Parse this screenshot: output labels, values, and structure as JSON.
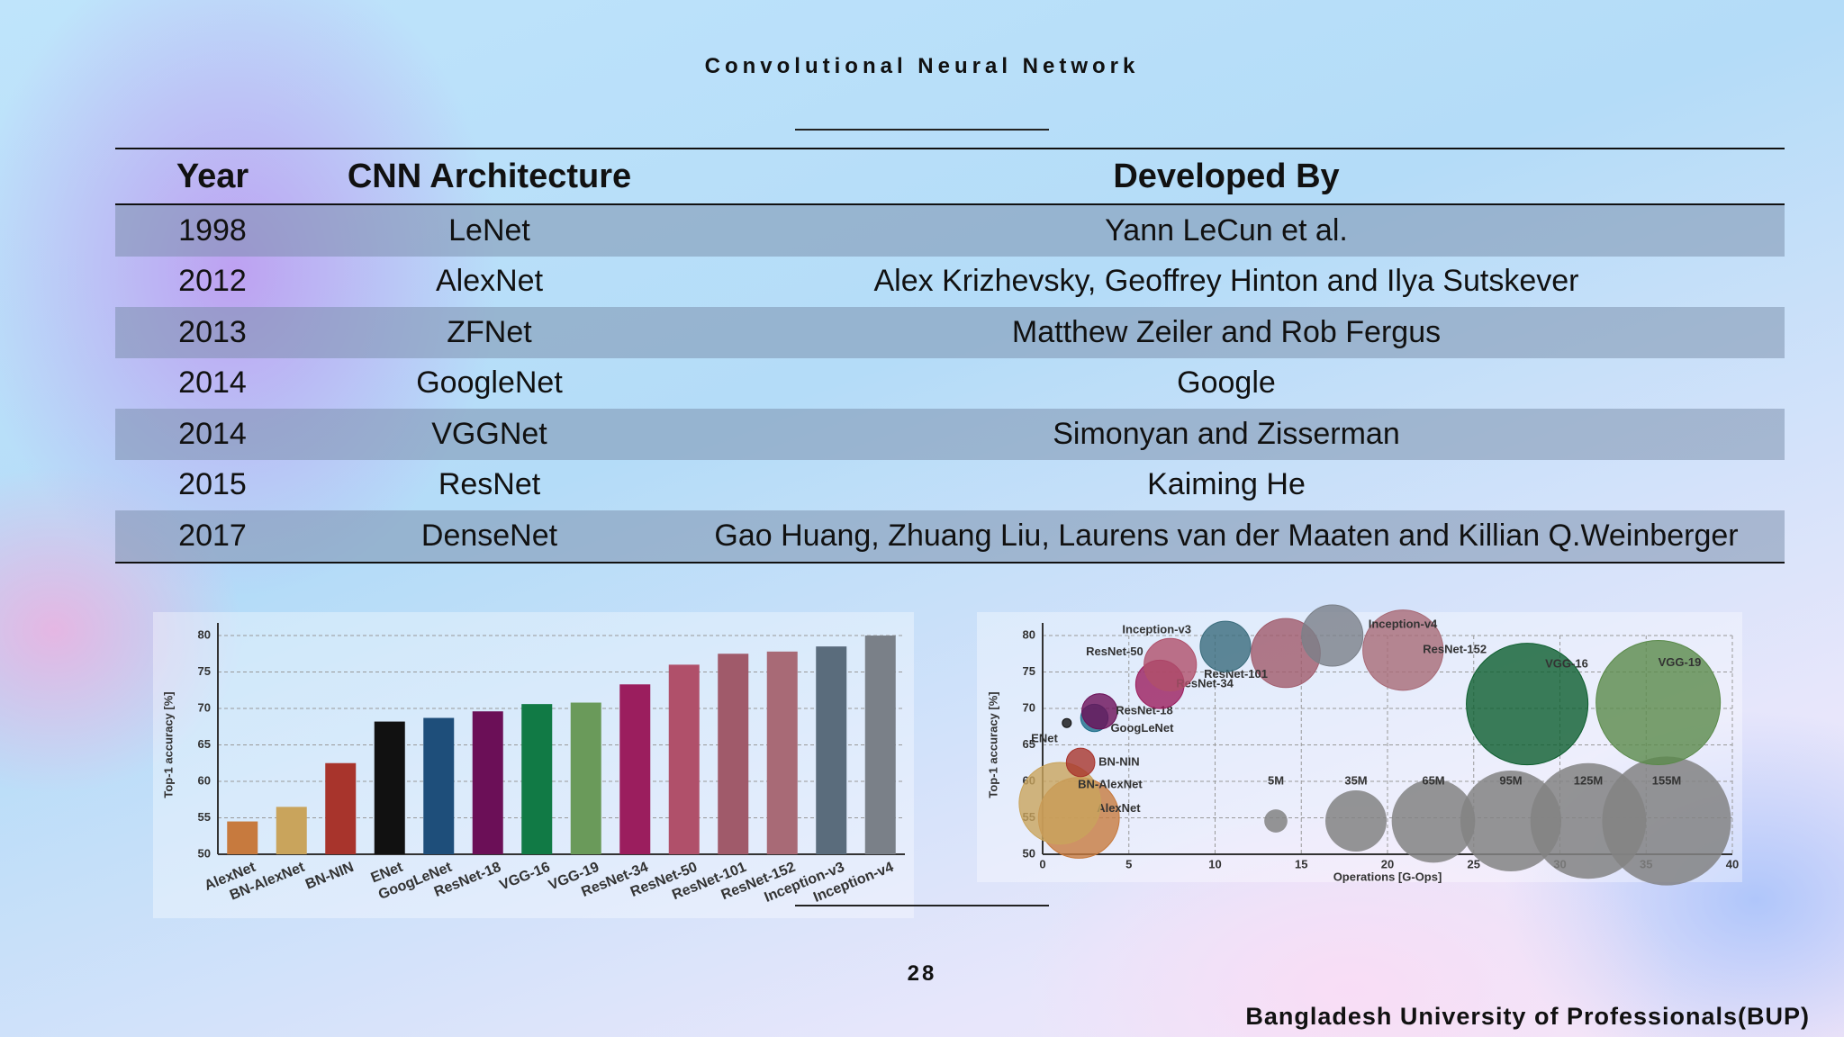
{
  "title": "Convolutional Neural Network",
  "table": {
    "header": [
      "Year",
      "CNN Architecture",
      "Developed By"
    ],
    "rows": [
      [
        "1998",
        "LeNet",
        "Yann LeCun et al."
      ],
      [
        "2012",
        "AlexNet",
        "Alex Krizhevsky, Geoffrey Hinton and Ilya Sutskever"
      ],
      [
        "2013",
        "ZFNet",
        "Matthew Zeiler and Rob Fergus"
      ],
      [
        "2014",
        "GoogleNet",
        "Google"
      ],
      [
        "2014",
        "VGGNet",
        "Simonyan and Zisserman"
      ],
      [
        "2015",
        "ResNet",
        "Kaiming He"
      ],
      [
        "2017",
        "DenseNet",
        "Gao Huang, Zhuang Liu, Laurens van der Maaten and Killian Q.Weinberger"
      ]
    ]
  },
  "chart_data": [
    {
      "type": "bar",
      "y_label": "Top-1 accuracy [%]",
      "categories": [
        "AlexNet",
        "BN-AlexNet",
        "BN-NIN",
        "ENet",
        "GoogLeNet",
        "ResNet-18",
        "VGG-16",
        "VGG-19",
        "ResNet-34",
        "ResNet-50",
        "ResNet-101",
        "ResNet-152",
        "Inception-v3",
        "Inception-v4"
      ],
      "values": [
        54.5,
        56.5,
        62.5,
        68.2,
        68.7,
        69.6,
        70.6,
        70.8,
        73.3,
        76,
        77.5,
        77.8,
        78.5,
        80
      ],
      "colors": [
        "#c77a3e",
        "#c9a45c",
        "#a8342c",
        "#111111",
        "#1e4e7a",
        "#6b0f57",
        "#117a45",
        "#6a9a5a",
        "#9b1e5e",
        "#b0506a",
        "#a05a6a",
        "#a86a76",
        "#5a6c7c",
        "#7a8088"
      ],
      "ylim": [
        50,
        80
      ],
      "yticks": [
        50,
        55,
        60,
        65,
        70,
        75,
        80
      ],
      "grid": true
    },
    {
      "type": "bubble",
      "x_label": "Operations [G-Ops]",
      "y_label": "Top-1 accuracy [%]",
      "labels": [
        "AlexNet",
        "BN-AlexNet",
        "BN-NIN",
        "ENet",
        "GoogLeNet",
        "ResNet-18",
        "ResNet-34",
        "ResNet-50",
        "ResNet-101",
        "ResNet-152",
        "Inception-v3",
        "Inception-v4",
        "VGG-16",
        "VGG-19"
      ],
      "x": [
        2.1,
        1,
        2.2,
        1.4,
        3,
        3.3,
        6.8,
        7.4,
        14.1,
        20.9,
        10.6,
        16.8,
        28.1,
        35.7
      ],
      "values": [
        55,
        57,
        62.6,
        68,
        68.7,
        69.6,
        73.3,
        76,
        77.6,
        78,
        78.5,
        80,
        70.6,
        70.8
      ],
      "sizes": [
        61,
        62,
        7.6,
        0.4,
        7,
        11.7,
        21.8,
        25.6,
        44.5,
        60.2,
        23.8,
        35,
        138,
        144
      ],
      "colors": [
        "#c77a3e",
        "#c9a45c",
        "#a8342c",
        "#111111",
        "#1e6e8a",
        "#6b0f57",
        "#9b1e5e",
        "#b0506a",
        "#a05a6a",
        "#a86a76",
        "#3a6c7c",
        "#7a8088",
        "#0d5e2e",
        "#5a8a4a"
      ],
      "size_legend": [
        {
          "value": 5,
          "label": "5M"
        },
        {
          "value": 35,
          "label": "35M"
        },
        {
          "value": 65,
          "label": "65M"
        },
        {
          "value": 95,
          "label": "95M"
        },
        {
          "value": 125,
          "label": "125M"
        },
        {
          "value": 155,
          "label": "155M"
        }
      ],
      "xlim": [
        0,
        40
      ],
      "xticks": [
        0,
        5,
        10,
        15,
        20,
        25,
        30,
        35,
        40
      ],
      "ylim": [
        50,
        80
      ],
      "yticks": [
        50,
        55,
        60,
        65,
        70,
        75,
        80
      ],
      "grid": true
    }
  ],
  "page_number": "28",
  "footer": "Bangladesh University of Professionals(BUP)"
}
